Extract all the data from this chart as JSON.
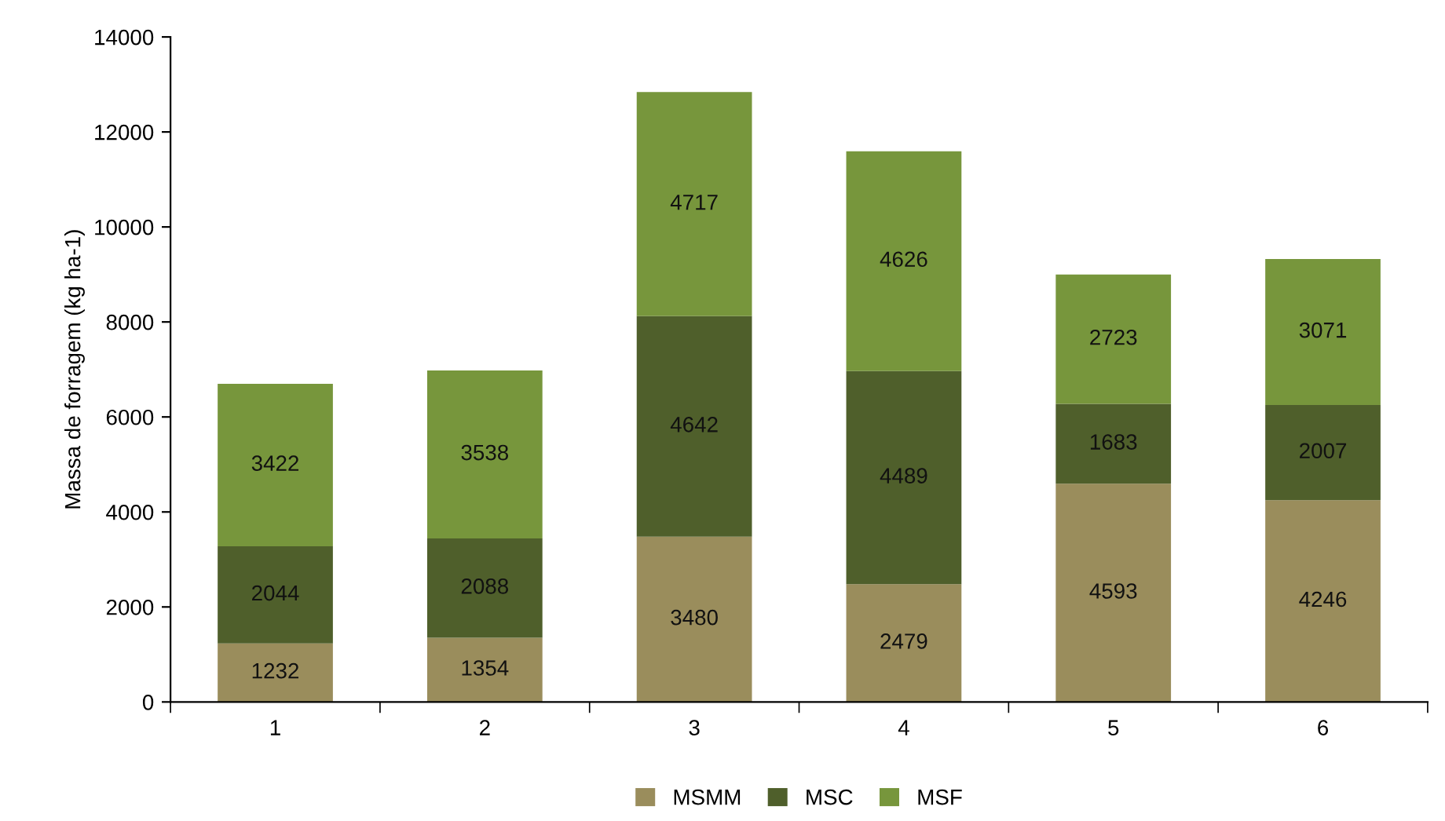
{
  "chart_data": {
    "type": "bar",
    "ylabel": "Massa de forragem (kg ha-1)",
    "categories": [
      "1",
      "2",
      "3",
      "4",
      "5",
      "6"
    ],
    "series": [
      {
        "name": "MSMM",
        "color": "#9a8d5c",
        "values": [
          1232,
          1354,
          3480,
          2479,
          4593,
          4246
        ]
      },
      {
        "name": "MSC",
        "color": "#4f5f2b",
        "values": [
          2044,
          2088,
          4642,
          4489,
          1683,
          2007
        ]
      },
      {
        "name": "MSF",
        "color": "#77963c",
        "values": [
          3422,
          3538,
          4717,
          4626,
          2723,
          3071
        ]
      }
    ],
    "stacked": true,
    "data_labels": true,
    "ylim": [
      0,
      14000
    ],
    "yticks": [
      0,
      2000,
      4000,
      6000,
      8000,
      10000,
      12000,
      14000
    ],
    "grid": false,
    "legend": "bottom"
  }
}
